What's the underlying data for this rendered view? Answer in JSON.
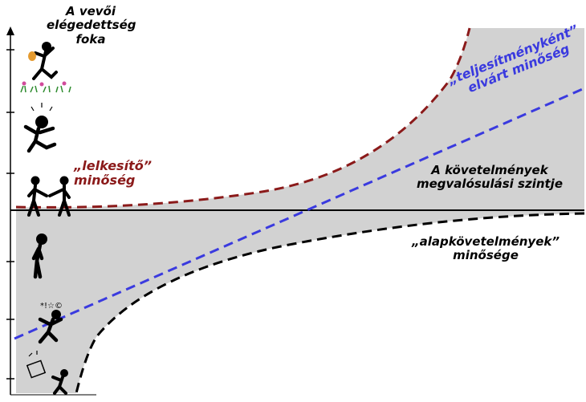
{
  "y_axis_title": "A vevői elégedettség foka",
  "labels": {
    "delighter": "„lelkesítő” minőség",
    "performance": "„teljesítményként” elvárt minőség",
    "fulfillment": "A követelmények megvalósulási szintje",
    "basic": "„alapkövetelmények” minősége"
  },
  "colors": {
    "background": "#ffffff",
    "shaded_region": "#d2d2d2",
    "delighter_curve": "#8b1a1a",
    "performance_line": "#3a3adf",
    "basic_curve": "#000000",
    "axes": "#000000"
  },
  "icons": [
    "happy-figure-icon",
    "jumping-figure-icon",
    "handshake-figures-icon",
    "sad-figure-icon",
    "angry-figure-icon",
    "furious-figure-icon"
  ]
}
